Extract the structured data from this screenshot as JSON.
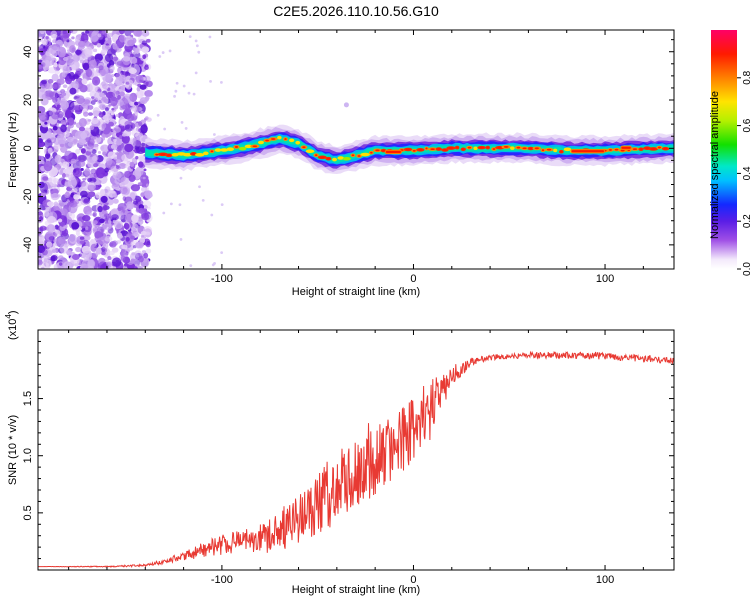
{
  "chart_data": [
    {
      "type": "heatmap",
      "title": "C2E5.2026.110.10.56.G10",
      "xlabel": "Height of straight line (km)",
      "ylabel": "Frequency (Hz)",
      "xlim": [
        -196,
        136
      ],
      "ylim": [
        -50,
        49
      ],
      "xticks": [
        -100,
        0,
        100
      ],
      "xtick_labels": [
        "-100",
        "0",
        "100"
      ],
      "yticks": [
        -40,
        -20,
        0,
        20,
        40
      ],
      "ytick_labels": [
        "-40",
        "-20",
        "0",
        "20",
        "40"
      ],
      "colorbar": {
        "label": "Normalized spectral amplitude",
        "range": [
          0,
          1
        ],
        "ticks": [
          0.0,
          0.2,
          0.4,
          0.6,
          0.8
        ],
        "tick_labels": [
          "0.0",
          "0.2",
          "0.4",
          "0.6",
          "0.8"
        ]
      },
      "ridge": {
        "description_points_x": [
          -135,
          -120,
          -100,
          -85,
          -70,
          -60,
          -50,
          -40,
          -30,
          -20,
          -10,
          0,
          20,
          40,
          60,
          80,
          100,
          136
        ],
        "center_freq_hz": [
          -2,
          -3,
          -1,
          1,
          4,
          2,
          -3,
          -5,
          -3,
          -1,
          -1,
          -1,
          0,
          0,
          0,
          -1,
          -1,
          0
        ]
      }
    },
    {
      "type": "line",
      "xlabel": "Height of straight line (km)",
      "ylabel": "SNR (10 * v/v)",
      "scale_label": "(x10",
      "scale_exp": "4",
      "scale_close": ")",
      "xlim": [
        -196,
        136
      ],
      "ylim": [
        0,
        2.1
      ],
      "xticks": [
        -100,
        0,
        100
      ],
      "xtick_labels": [
        "-100",
        "0",
        "100"
      ],
      "yticks": [
        0.5,
        1.0,
        1.5
      ],
      "ytick_labels": [
        "0.5",
        "1.0",
        "1.5"
      ],
      "color": "#e83a33",
      "series": [
        {
          "name": "SNR",
          "x": [
            -196,
            -160,
            -140,
            -130,
            -120,
            -110,
            -100,
            -90,
            -80,
            -70,
            -60,
            -50,
            -40,
            -30,
            -20,
            -10,
            0,
            10,
            20,
            30,
            40,
            60,
            80,
            100,
            120,
            136
          ],
          "y": [
            0.03,
            0.03,
            0.04,
            0.07,
            0.12,
            0.18,
            0.22,
            0.25,
            0.28,
            0.35,
            0.45,
            0.58,
            0.72,
            0.85,
            0.95,
            1.08,
            1.25,
            1.45,
            1.7,
            1.82,
            1.86,
            1.88,
            1.88,
            1.87,
            1.85,
            1.83
          ],
          "noise": [
            0.0,
            0.005,
            0.01,
            0.02,
            0.04,
            0.07,
            0.09,
            0.1,
            0.12,
            0.16,
            0.22,
            0.28,
            0.32,
            0.32,
            0.3,
            0.3,
            0.32,
            0.22,
            0.1,
            0.03,
            0.025,
            0.025,
            0.03,
            0.03,
            0.03,
            0.025
          ]
        }
      ]
    }
  ]
}
